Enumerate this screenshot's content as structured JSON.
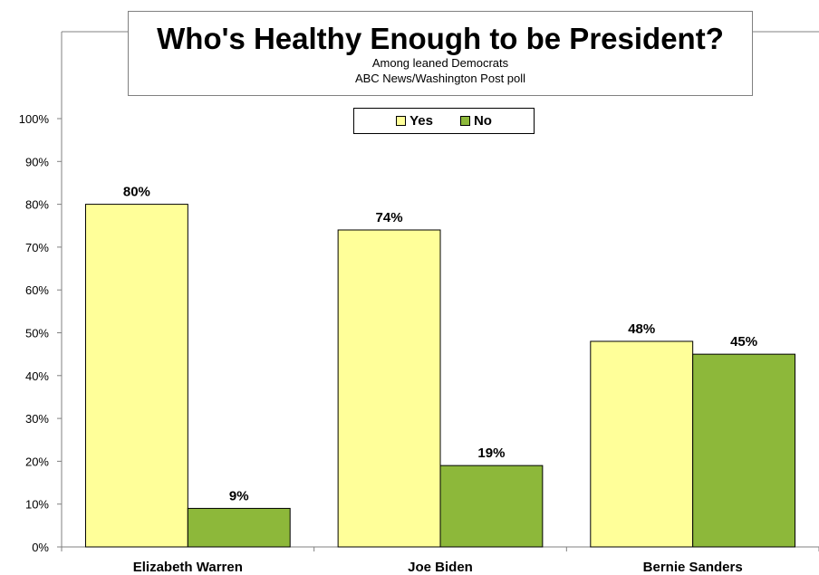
{
  "chart_data": {
    "type": "bar",
    "title": "Who's Healthy Enough to be President?",
    "subtitle_lines": [
      "Among leaned Democrats",
      "ABC News/Washington Post poll"
    ],
    "categories": [
      "Elizabeth Warren",
      "Joe Biden",
      "Bernie Sanders"
    ],
    "series": [
      {
        "name": "Yes",
        "values": [
          80,
          74,
          48
        ],
        "color": "#FFFF99"
      },
      {
        "name": "No",
        "values": [
          9,
          19,
          45
        ],
        "color": "#8DB83A"
      }
    ],
    "value_labels": [
      [
        "80%",
        "74%",
        "48%"
      ],
      [
        "9%",
        "19%",
        "45%"
      ]
    ],
    "ylim": [
      0,
      100
    ],
    "yticks": [
      "0%",
      "10%",
      "20%",
      "30%",
      "40%",
      "50%",
      "60%",
      "70%",
      "80%",
      "90%",
      "100%"
    ],
    "grid": false,
    "legend_position": "top-center"
  }
}
